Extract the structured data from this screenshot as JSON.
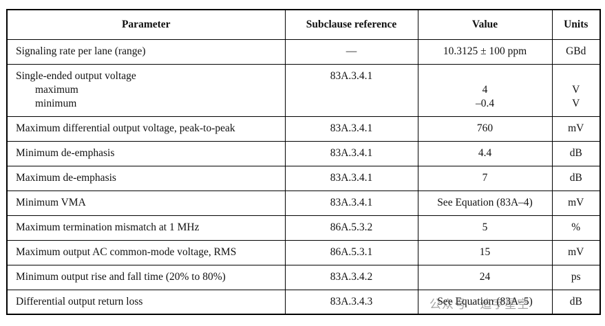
{
  "table": {
    "header": [
      "Parameter",
      "Subclause reference",
      "Value",
      "Units"
    ],
    "rows": [
      [
        "Signaling rate per lane (range)",
        "—",
        "10.3125 ± 100 ppm",
        "GBd"
      ],
      [
        [
          "Single-ended output voltage",
          "maximum",
          "minimum"
        ],
        "83A.3.4.1",
        [
          "4",
          "–0.4"
        ],
        [
          "V",
          "V"
        ]
      ],
      [
        "Maximum differential output voltage, peak-to-peak",
        "83A.3.4.1",
        "760",
        "mV"
      ],
      [
        "Minimum de-emphasis",
        "83A.3.4.1",
        "4.4",
        "dB"
      ],
      [
        "Maximum de-emphasis",
        "83A.3.4.1",
        "7",
        "dB"
      ],
      [
        "Minimum VMA",
        "83A.3.4.1",
        "See Equation (83A–4)",
        "mV"
      ],
      [
        "Maximum termination mismatch at 1 MHz",
        "86A.5.3.2",
        "5",
        "%"
      ],
      [
        "Maximum output AC common-mode voltage, RMS",
        "86A.5.3.1",
        "15",
        "mV"
      ],
      [
        "Minimum output rise and fall time (20% to 80%)",
        "83A.3.4.2",
        "24",
        "ps"
      ],
      [
        "Differential output return loss",
        "83A.3.4.3",
        "See Equation (83A–5)",
        "dB"
      ]
    ]
  },
  "watermark": "公众号 · 追宇星空"
}
